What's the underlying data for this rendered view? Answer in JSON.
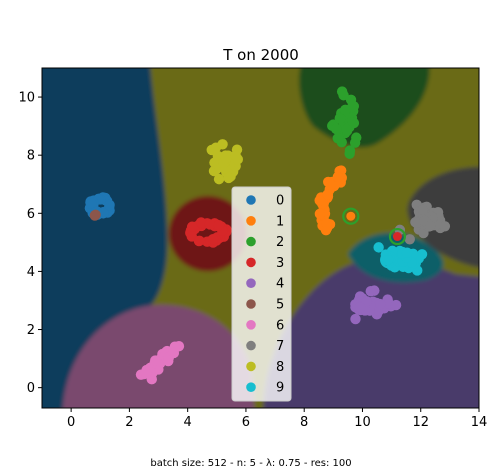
{
  "chart_data": {
    "type": "scatter",
    "title": "T on 2000",
    "caption": "batch size: 512 - n: 5 - λ: 0.75 - res: 100",
    "xlim": [
      -1,
      14
    ],
    "ylim": [
      -0.7,
      11
    ],
    "x_ticks": [
      0,
      2,
      4,
      6,
      8,
      10,
      12,
      14
    ],
    "y_ticks": [
      0,
      2,
      4,
      6,
      8,
      10
    ],
    "legend_position": "center",
    "grid": false,
    "background_regions": "decision regions colored by predicted class",
    "colors": {
      "0": "#1f77b4",
      "1": "#ff7f0e",
      "2": "#2ca02c",
      "3": "#d62728",
      "4": "#9467bd",
      "5": "#8c564b",
      "6": "#e377c2",
      "7": "#7f7f7f",
      "8": "#bcbd22",
      "9": "#17becf"
    },
    "region_colors": {
      "background": "#6b6b13",
      "0": "#0e3d5c",
      "2": "#1a4d1a",
      "3": "#6e1212",
      "4": "#4a3a6a",
      "6": "#7a4a6e",
      "7": "#3c3c3c",
      "9": "#0d5f68"
    },
    "series": [
      {
        "name": "0",
        "center": [
          1.0,
          6.25
        ],
        "spread": [
          0.35,
          0.3
        ],
        "shape": "ring",
        "count": 40
      },
      {
        "name": "1",
        "center": [
          8.7,
          6.4
        ],
        "spread": [
          0.4,
          1.0
        ],
        "shape": "arc",
        "count": 45
      },
      {
        "name": "2",
        "center": [
          9.4,
          9.0
        ],
        "spread": [
          0.3,
          0.75
        ],
        "shape": "blob",
        "count": 40
      },
      {
        "name": "3",
        "center": [
          4.7,
          5.35
        ],
        "spread": [
          0.6,
          0.35
        ],
        "shape": "ring",
        "count": 40
      },
      {
        "name": "4",
        "center": [
          10.2,
          2.8
        ],
        "spread": [
          0.6,
          0.3
        ],
        "shape": "blob",
        "count": 40
      },
      {
        "name": "5",
        "center": [
          0.8,
          5.95
        ],
        "spread": [
          0.05,
          0.05
        ],
        "shape": "blob",
        "count": 2
      },
      {
        "name": "6",
        "center": [
          3.1,
          0.95
        ],
        "spread": [
          0.55,
          0.5
        ],
        "shape": "line",
        "count": 45
      },
      {
        "name": "7",
        "center": [
          12.2,
          5.8
        ],
        "spread": [
          0.45,
          0.4
        ],
        "shape": "blob",
        "count": 40
      },
      {
        "name": "8",
        "center": [
          5.3,
          7.7
        ],
        "spread": [
          0.3,
          0.5
        ],
        "shape": "blob",
        "count": 40
      },
      {
        "name": "9",
        "center": [
          11.4,
          4.45
        ],
        "spread": [
          0.55,
          0.35
        ],
        "shape": "blob",
        "count": 40
      }
    ],
    "highlighted_points": [
      {
        "x": 9.6,
        "y": 5.9,
        "ring_color": "#2ca02c",
        "fill": "#ff7f0e"
      },
      {
        "x": 11.2,
        "y": 5.2,
        "ring_color": "#2ca02c",
        "fill": "#d62728"
      },
      {
        "x": 10.9,
        "y": 4.4,
        "ring_color": "#17becf",
        "fill": "#17becf"
      }
    ]
  }
}
